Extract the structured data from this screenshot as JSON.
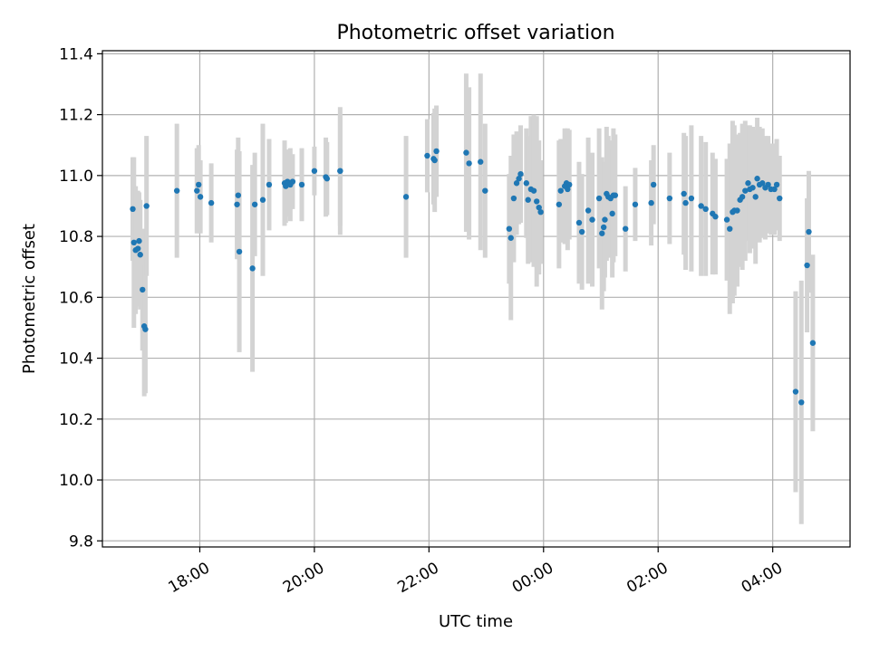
{
  "chart_data": {
    "type": "scatter",
    "title": "Photometric offset variation",
    "xlabel": "UTC time",
    "ylabel": "Photometric offset",
    "x_unit": "hours since 00:00 UTC (day boundary at 00:00)",
    "xlim": [
      -7.7,
      5.35
    ],
    "ylim": [
      9.78,
      11.41
    ],
    "xticks": [
      -6,
      -4,
      -2,
      0,
      2,
      4
    ],
    "xtick_labels": [
      "18:00",
      "20:00",
      "22:00",
      "00:00",
      "02:00",
      "04:00"
    ],
    "yticks": [
      9.8,
      10.0,
      10.2,
      10.4,
      10.6,
      10.8,
      11.0,
      11.2,
      11.4
    ],
    "ytick_labels": [
      "9.8",
      "10.0",
      "10.2",
      "10.4",
      "10.6",
      "10.8",
      "11.0",
      "11.2",
      "11.4"
    ],
    "grid": true,
    "colors": {
      "points": "#1f77b4",
      "errorbars": "#d3d3d3",
      "grid": "#b0b0b0"
    },
    "series": [
      {
        "x": [
          -7.17,
          -7.15,
          -7.12,
          -7.08,
          -7.06,
          -7.04,
          -7.0,
          -6.97,
          -6.95,
          -6.93,
          -6.4,
          -6.05,
          -6.02,
          -5.99,
          -5.8,
          -5.35,
          -5.33,
          -5.31,
          -5.08,
          -5.04,
          -4.9,
          -4.79,
          -4.52,
          -4.5,
          -4.47,
          -4.45,
          -4.42,
          -4.38,
          -4.22,
          -4.0,
          -3.8,
          -3.78,
          -3.55,
          -3.55,
          -2.4,
          -2.03,
          -1.92,
          -1.9,
          -1.87,
          -1.35,
          -1.3,
          -1.1,
          -1.02,
          -0.6,
          -0.57,
          -0.52,
          -0.47,
          -0.43,
          -0.4,
          -0.3,
          -0.27,
          -0.22,
          -0.17,
          -0.12,
          -0.08,
          -0.05,
          0.27,
          0.3,
          0.37,
          0.4,
          0.42,
          0.45,
          0.62,
          0.67,
          0.78,
          0.85,
          0.97,
          1.02,
          1.05,
          1.07,
          1.1,
          1.13,
          1.17,
          1.2,
          1.22,
          1.25,
          1.43,
          1.6,
          1.88,
          1.92,
          2.2,
          2.45,
          2.48,
          2.58,
          2.75,
          2.83,
          2.95,
          3.0,
          3.2,
          3.25,
          3.3,
          3.33,
          3.38,
          3.43,
          3.47,
          3.52,
          3.57,
          3.6,
          3.65,
          3.7,
          3.73,
          3.77,
          3.82,
          3.87,
          3.92,
          3.97,
          4.03,
          4.07,
          4.12,
          4.4,
          4.5,
          4.6,
          4.63,
          4.7
        ],
        "y": [
          10.89,
          10.78,
          10.755,
          10.76,
          10.785,
          10.74,
          10.625,
          10.505,
          10.495,
          10.9,
          10.95,
          10.95,
          10.97,
          10.93,
          10.91,
          10.905,
          10.935,
          10.75,
          10.695,
          10.905,
          10.92,
          10.97,
          10.975,
          10.965,
          10.98,
          10.975,
          10.97,
          10.98,
          10.97,
          11.015,
          10.995,
          10.99,
          11.015,
          11.015,
          10.93,
          11.065,
          11.055,
          11.05,
          11.08,
          11.075,
          11.04,
          11.045,
          10.95,
          10.825,
          10.795,
          10.925,
          10.975,
          10.99,
          11.005,
          10.975,
          10.92,
          10.955,
          10.95,
          10.915,
          10.895,
          10.88,
          10.905,
          10.95,
          10.965,
          10.975,
          10.955,
          10.97,
          10.845,
          10.815,
          10.885,
          10.855,
          10.925,
          10.81,
          10.83,
          10.855,
          10.94,
          10.93,
          10.925,
          10.875,
          10.935,
          10.935,
          10.825,
          10.905,
          10.91,
          10.97,
          10.925,
          10.94,
          10.91,
          10.925,
          10.9,
          10.89,
          10.875,
          10.865,
          10.855,
          10.825,
          10.88,
          10.885,
          10.885,
          10.92,
          10.93,
          10.95,
          10.975,
          10.955,
          10.96,
          10.93,
          10.99,
          10.97,
          10.975,
          10.96,
          10.97,
          10.955,
          10.955,
          10.97,
          10.925,
          10.29,
          10.255,
          10.705,
          10.815,
          10.45
        ],
        "yerr": [
          0.17,
          0.28,
          0.21,
          0.19,
          0.16,
          0.18,
          0.2,
          0.23,
          0.21,
          0.23,
          0.22,
          0.14,
          0.13,
          0.12,
          0.13,
          0.18,
          0.19,
          0.33,
          0.34,
          0.17,
          0.25,
          0.15,
          0.14,
          0.12,
          0.1,
          0.11,
          0.12,
          0.09,
          0.12,
          0.08,
          0.13,
          0.12,
          0.21,
          0.18,
          0.2,
          0.12,
          0.15,
          0.17,
          0.15,
          0.26,
          0.25,
          0.29,
          0.22,
          0.18,
          0.27,
          0.21,
          0.17,
          0.15,
          0.16,
          0.18,
          0.21,
          0.24,
          0.25,
          0.28,
          0.22,
          0.17,
          0.21,
          0.17,
          0.19,
          0.16,
          0.2,
          0.18,
          0.2,
          0.19,
          0.24,
          0.22,
          0.23,
          0.25,
          0.21,
          0.19,
          0.22,
          0.2,
          0.19,
          0.21,
          0.22,
          0.2,
          0.14,
          0.12,
          0.14,
          0.13,
          0.15,
          0.2,
          0.22,
          0.24,
          0.23,
          0.22,
          0.2,
          0.19,
          0.2,
          0.28,
          0.3,
          0.28,
          0.25,
          0.22,
          0.24,
          0.23,
          0.19,
          0.21,
          0.2,
          0.22,
          0.2,
          0.19,
          0.18,
          0.17,
          0.16,
          0.15,
          0.15,
          0.15,
          0.14,
          0.33,
          0.4,
          0.22,
          0.2,
          0.29
        ]
      }
    ]
  }
}
